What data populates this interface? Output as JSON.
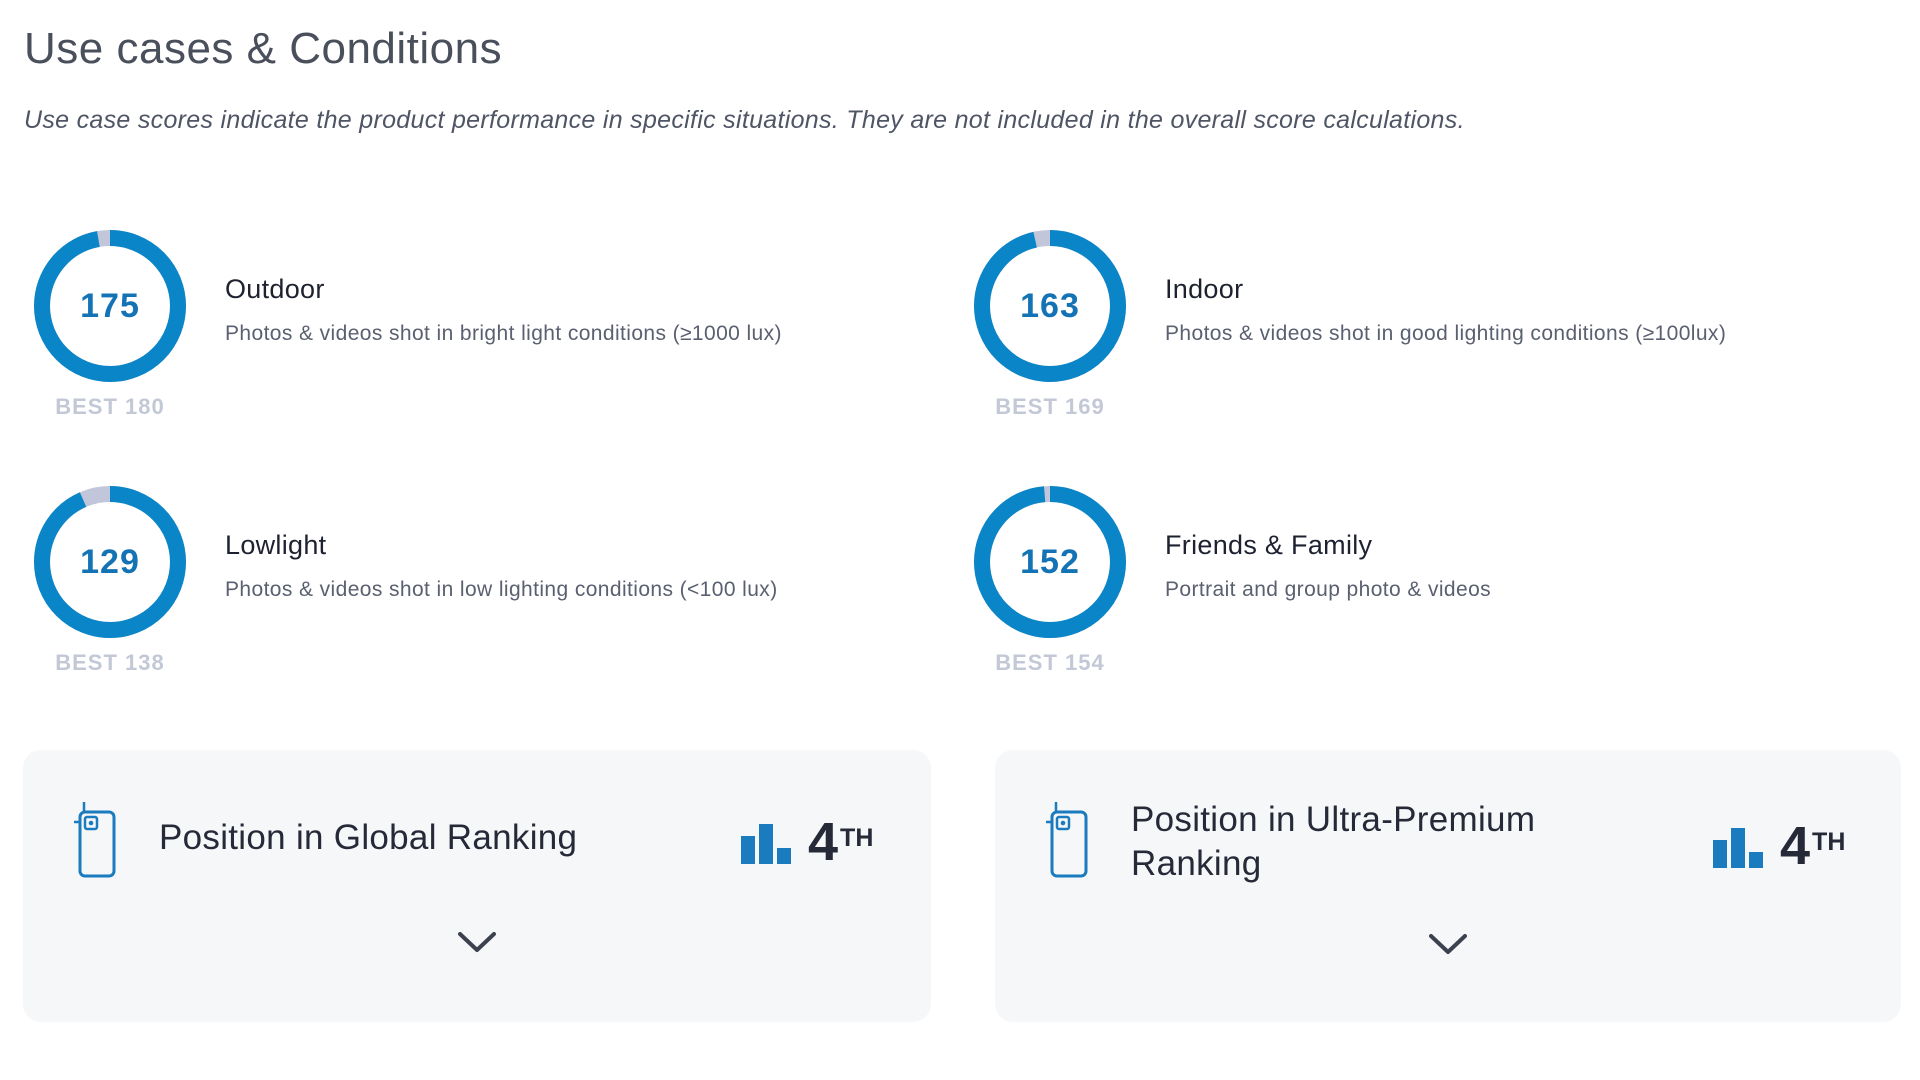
{
  "section": {
    "title": "Use cases & Conditions",
    "subtitle": "Use case scores indicate the product performance in specific situations. They are not included in the overall score calculations."
  },
  "usecases": [
    {
      "name": "Outdoor",
      "description": "Photos & videos shot in bright light conditions (≥1000 lux)",
      "score": 175,
      "best": 180,
      "best_label": "BEST 180"
    },
    {
      "name": "Indoor",
      "description": "Photos & videos shot in good lighting conditions (≥100lux)",
      "score": 163,
      "best": 169,
      "best_label": "BEST 169"
    },
    {
      "name": "Lowlight",
      "description": "Photos & videos shot in low lighting conditions (<100 lux)",
      "score": 129,
      "best": 138,
      "best_label": "BEST 138"
    },
    {
      "name": "Friends & Family",
      "description": "Portrait and group photo & videos",
      "score": 152,
      "best": 154,
      "best_label": "BEST 154"
    }
  ],
  "rankings": [
    {
      "title": "Position in Global Ranking",
      "position": "4",
      "suffix": "TH",
      "icon": "phone-camera-icon",
      "toggle_icon": "chevron-down-icon"
    },
    {
      "title": "Position in Ultra-Premium Ranking",
      "position": "4",
      "suffix": "TH",
      "icon": "phone-camera-icon",
      "toggle_icon": "chevron-down-icon"
    }
  ],
  "colors": {
    "gauge_fill": "#0a85c8",
    "gauge_remaining": "#c2c6da",
    "score_text": "#1373b4",
    "best_text": "#c3c8d6",
    "accent": "#1a7bbf"
  }
}
